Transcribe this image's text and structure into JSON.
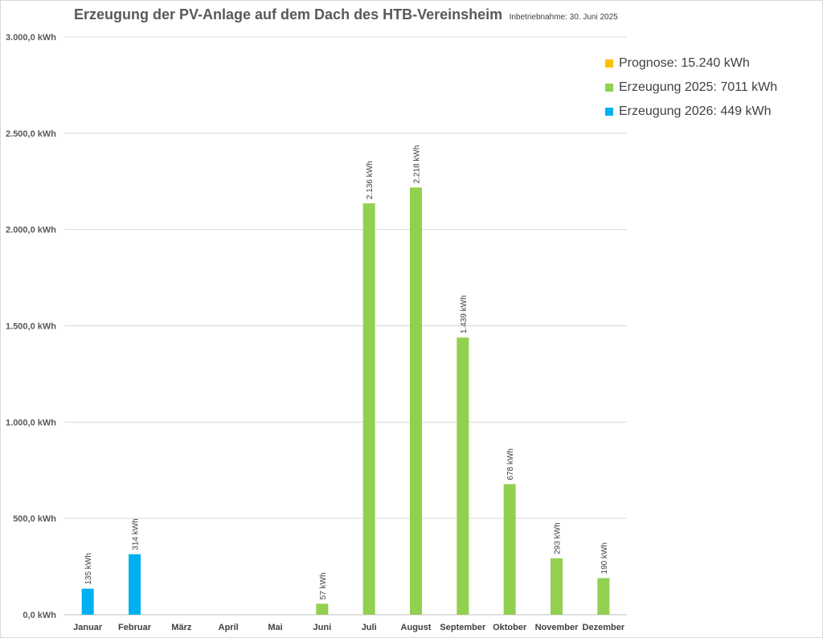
{
  "chart_data": {
    "type": "bar",
    "title": "Erzeugung der PV-Anlage auf dem Dach des HTB-Vereinsheim",
    "subtitle": "Inbetriebnahme: 30. Juni 2025",
    "categories": [
      "Januar",
      "Februar",
      "März",
      "April",
      "Mai",
      "Juni",
      "Juli",
      "August",
      "September",
      "Oktober",
      "November",
      "Dezember"
    ],
    "series": [
      {
        "name": "Prognose: 15.240 kWh",
        "color": "#ffc000",
        "values": [
          null,
          null,
          null,
          null,
          null,
          null,
          null,
          null,
          null,
          null,
          null,
          null
        ],
        "labels": []
      },
      {
        "name": "Erzeugung 2025: 7011 kWh",
        "color": "#92d050",
        "values": [
          null,
          null,
          null,
          null,
          null,
          57,
          2136,
          2218,
          1439,
          678,
          293,
          190
        ],
        "labels": [
          "",
          "",
          "",
          "",
          "",
          "57 kWh",
          "2.136 kWh",
          "2.218 kWh",
          "1.439 kWh",
          "678 kWh",
          "293 kWh",
          "190 kWh"
        ]
      },
      {
        "name": "Erzeugung 2026: 449 kWh",
        "color": "#00b0f0",
        "values": [
          135,
          314,
          null,
          null,
          null,
          null,
          null,
          null,
          null,
          null,
          null,
          null
        ],
        "labels": [
          "135 kWh",
          "314 kWh",
          "",
          "",
          "",
          "",
          "",
          "",
          "",
          "",
          "",
          ""
        ]
      }
    ],
    "ylim": [
      0,
      3000
    ],
    "yticks": [
      0,
      500,
      1000,
      1500,
      2000,
      2500,
      3000
    ],
    "ytick_labels": [
      "0,0 kWh",
      "500,0 kWh",
      "1.000,0 kWh",
      "1.500,0 kWh",
      "2.000,0 kWh",
      "2.500,0 kWh",
      "3.000,0 kWh"
    ],
    "grid": true,
    "legend_position": "top-right"
  }
}
